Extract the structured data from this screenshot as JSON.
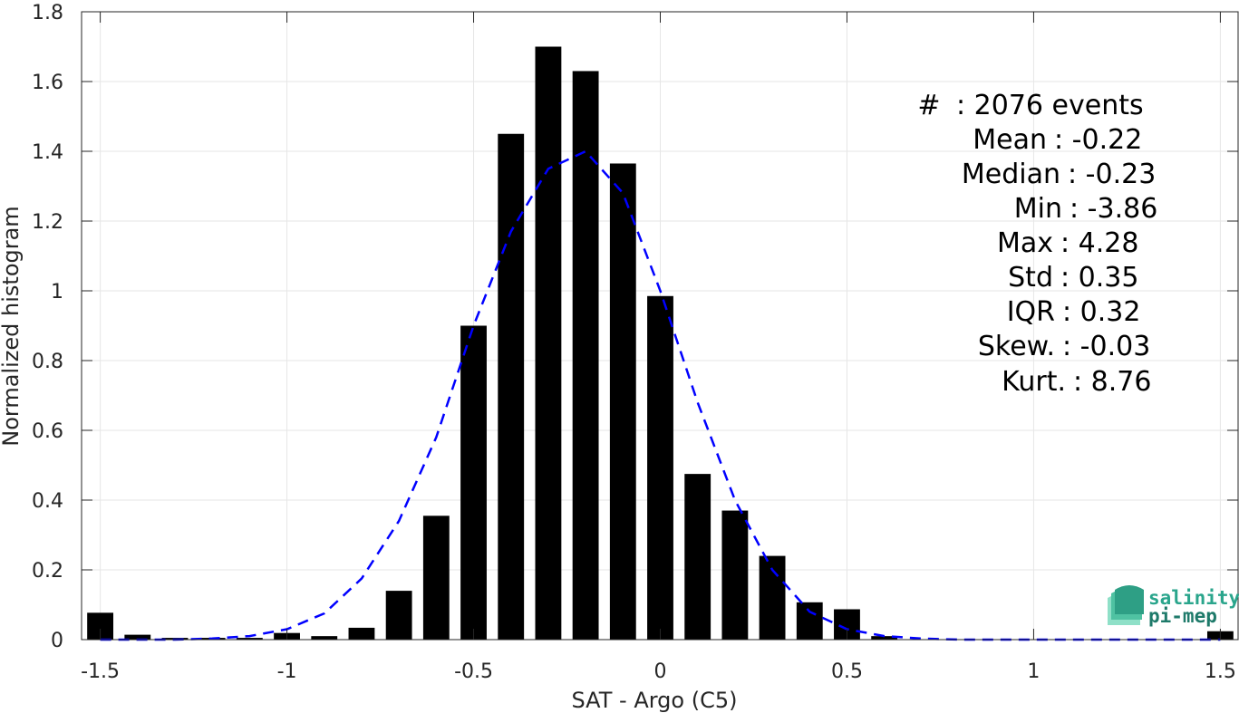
{
  "chart_data": {
    "type": "bar",
    "xlabel": "SAT - Argo (C5)",
    "ylabel": "Normalized histogram",
    "xlim": [
      -1.55,
      1.55
    ],
    "ylim": [
      0,
      1.8
    ],
    "grid": true,
    "xticks": [
      -1.5,
      -1,
      -0.5,
      0,
      0.5,
      1,
      1.5
    ],
    "xtick_labels": [
      "-1.5",
      "-1",
      "-0.5",
      "0",
      "0.5",
      "1",
      "1.5"
    ],
    "yticks": [
      0,
      0.2,
      0.4,
      0.6,
      0.8,
      1,
      1.2,
      1.4,
      1.6,
      1.8
    ],
    "ytick_labels": [
      "0",
      "0.2",
      "0.4",
      "0.6",
      "0.8",
      "1",
      "1.2",
      "1.4",
      "1.6",
      "1.8"
    ],
    "bin_width": 0.1,
    "bar_color": "#000000",
    "x": [
      -1.5,
      -1.4,
      -1.3,
      -1.2,
      -1.1,
      -1.0,
      -0.9,
      -0.8,
      -0.7,
      -0.6,
      -0.5,
      -0.4,
      -0.3,
      -0.2,
      -0.1,
      0.0,
      0.1,
      0.2,
      0.3,
      0.4,
      0.5,
      0.6,
      0.7,
      0.8,
      0.9,
      1.0,
      1.1,
      1.2,
      1.3,
      1.4,
      1.5
    ],
    "values": [
      0.077,
      0.014,
      0.005,
      0.005,
      0.005,
      0.019,
      0.01,
      0.034,
      0.14,
      0.355,
      0.9,
      1.45,
      1.7,
      1.63,
      1.365,
      0.985,
      0.475,
      0.37,
      0.24,
      0.107,
      0.087,
      0.01,
      0,
      0,
      0,
      0,
      0,
      0,
      0,
      0,
      0.024
    ],
    "fit": {
      "style": "dashed",
      "color": "#0000ff",
      "x": [
        -1.5,
        -1.4,
        -1.3,
        -1.2,
        -1.1,
        -1.0,
        -0.9,
        -0.8,
        -0.7,
        -0.6,
        -0.5,
        -0.4,
        -0.3,
        -0.2,
        -0.1,
        0.0,
        0.1,
        0.2,
        0.3,
        0.4,
        0.5,
        0.6,
        0.7,
        0.8,
        0.9,
        1.0,
        1.1,
        1.2,
        1.3,
        1.4,
        1.5
      ],
      "y": [
        0.0,
        0.0,
        0.0,
        0.003,
        0.01,
        0.03,
        0.075,
        0.175,
        0.34,
        0.58,
        0.9,
        1.17,
        1.35,
        1.4,
        1.28,
        1.0,
        0.68,
        0.4,
        0.2,
        0.08,
        0.03,
        0.01,
        0.003,
        0.0,
        0.0,
        0.0,
        0.0,
        0.0,
        0.0,
        0.0,
        0.0
      ]
    },
    "stats": [
      {
        "label": "#  ",
        "value": "2076 events"
      },
      {
        "label": "Mean",
        "value": "-0.22"
      },
      {
        "label": "Median",
        "value": "-0.23"
      },
      {
        "label": "Min",
        "value": "-3.86"
      },
      {
        "label": "Max",
        "value": "4.28"
      },
      {
        "label": "Std",
        "value": "0.35"
      },
      {
        "label": "IQR",
        "value": "0.32"
      },
      {
        "label": "Skew.",
        "value": "-0.03"
      },
      {
        "label": "Kurt.",
        "value": "8.76"
      }
    ]
  },
  "logo": {
    "line1": "salinity",
    "line2": "pi-mep",
    "colors": {
      "text1": "#2aa58c",
      "text2": "#1e7a6a",
      "icon_light": "#8fe0c8",
      "icon_dark": "#1f7f6b"
    }
  }
}
